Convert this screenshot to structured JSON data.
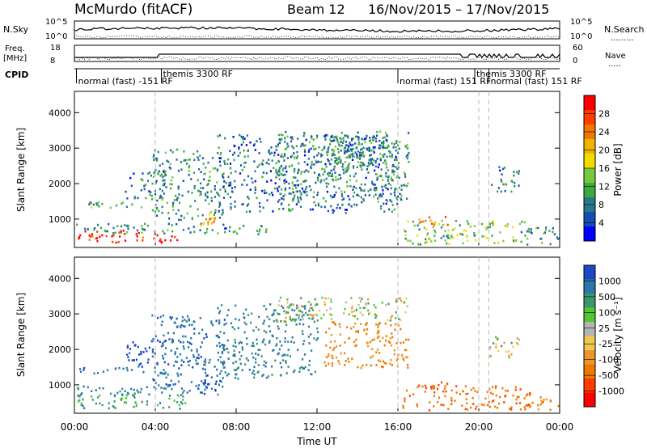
{
  "header": {
    "station": "McMurdo (fitACF)",
    "beam": "Beam 12",
    "dates": "16/Nov/2015 – 17/Nov/2015"
  },
  "panels": {
    "nsky": {
      "left_label": "N.Sky",
      "right_label": "N.Search",
      "right_dots": ".........",
      "ticks_left": [
        "10^5",
        "10^0"
      ],
      "ticks_right": [
        "10^5",
        "10^0"
      ]
    },
    "freq": {
      "left_label_1": "Freq.",
      "left_label_2": "[MHz]",
      "right_label": "Nave",
      "right_dots": ".....",
      "ticks_left": [
        "18",
        "8"
      ],
      "ticks_right": [
        "60",
        "0"
      ]
    },
    "cpid": {
      "label": "CPID"
    }
  },
  "cpid_labels": [
    {
      "text": "normal (fast) -151 RF",
      "time_h": 0.1,
      "row": 2
    },
    {
      "text": "themis 3300 RF",
      "time_h": 4.3,
      "row": 1
    },
    {
      "text": "normal (fast) 151 RF",
      "time_h": 16.0,
      "row": 2
    },
    {
      "text": "themis 3300 RF",
      "time_h": 19.8,
      "row": 1
    },
    {
      "text": "normal (fast) 151 RF",
      "time_h": 20.5,
      "row": 2
    }
  ],
  "colorbars": {
    "power": {
      "label": "Power [dB]",
      "ticks": [
        "28",
        "24",
        "20",
        "16",
        "12",
        "8",
        "4"
      ],
      "colors": [
        "#ff0000",
        "#ff3c00",
        "#f07800",
        "#f0b400",
        "#f0dc00",
        "#78c83c",
        "#3caa3c",
        "#28788c",
        "#1450b4",
        "#0000ff"
      ]
    },
    "velocity": {
      "label": "Velocity [m s⁻¹]",
      "ticks": [
        "1000",
        "500",
        "100",
        "25",
        "-25",
        "-100",
        "-500",
        "-1000"
      ],
      "colors": [
        "#1e46c8",
        "#2878aa",
        "#3c966e",
        "#50c832",
        "#b4b4b4",
        "#f0c850",
        "#f09628",
        "#f07800",
        "#ff3c00",
        "#ff0000"
      ]
    }
  },
  "chart_data": [
    {
      "type": "heatmap",
      "name": "Power",
      "ylabel": "Slant Range [km]",
      "xlabel": "Time UT",
      "x_ticks": [
        "00:00",
        "04:00",
        "08:00",
        "12:00",
        "16:00",
        "20:00",
        "00:00"
      ],
      "y_ticks": [
        "1000",
        "2000",
        "3000",
        "4000"
      ],
      "ylim": [
        200,
        4600
      ],
      "xlim_hours": [
        0,
        24
      ],
      "blobs": [
        {
          "t0": 0,
          "t1": 5.2,
          "r0": 360,
          "r1": 720,
          "v": 30
        },
        {
          "t0": 0,
          "t1": 7.5,
          "r0": 620,
          "r1": 900,
          "v": 10
        },
        {
          "t0": 0,
          "t1": 3.5,
          "r0": 1350,
          "r1": 1550,
          "v": 12
        },
        {
          "t0": 2.5,
          "t1": 4.5,
          "r0": 1600,
          "r1": 2400,
          "v": 8
        },
        {
          "t0": 3.8,
          "t1": 7.4,
          "r0": 1000,
          "r1": 3000,
          "v": 10
        },
        {
          "t0": 6.2,
          "t1": 7.0,
          "r0": 600,
          "r1": 1400,
          "v": 22
        },
        {
          "t0": 7.0,
          "t1": 9.5,
          "r0": 600,
          "r1": 900,
          "v": 9
        },
        {
          "t0": 7.0,
          "t1": 16.0,
          "r0": 1200,
          "r1": 3400,
          "v": 8
        },
        {
          "t0": 10.0,
          "t1": 16.5,
          "r0": 1500,
          "r1": 3500,
          "v": 11
        },
        {
          "t0": 12.3,
          "t1": 15.5,
          "r0": 2500,
          "r1": 3400,
          "v": 9
        },
        {
          "t0": 16.2,
          "t1": 22.5,
          "r0": 300,
          "r1": 1000,
          "v": 14
        },
        {
          "t0": 17.0,
          "t1": 18.5,
          "r0": 800,
          "r1": 1100,
          "v": 24
        },
        {
          "t0": 20.5,
          "t1": 22.0,
          "r0": 1800,
          "r1": 2500,
          "v": 9
        },
        {
          "t0": 22.0,
          "t1": 24.0,
          "r0": 300,
          "r1": 800,
          "v": 10
        }
      ]
    },
    {
      "type": "heatmap",
      "name": "Velocity",
      "ylabel": "Slant Range [km]",
      "xlabel": "Time UT",
      "x_ticks": [
        "00:00",
        "04:00",
        "08:00",
        "12:00",
        "16:00",
        "20:00",
        "00:00"
      ],
      "y_ticks": [
        "1000",
        "2000",
        "3000",
        "4000"
      ],
      "ylim": [
        200,
        4600
      ],
      "xlim_hours": [
        0,
        24
      ],
      "blobs": [
        {
          "t0": 0,
          "t1": 5.5,
          "r0": 350,
          "r1": 750,
          "v": 150
        },
        {
          "t0": 0,
          "t1": 7.5,
          "r0": 700,
          "r1": 1000,
          "v": 300
        },
        {
          "t0": 0,
          "t1": 3.5,
          "r0": 1350,
          "r1": 1550,
          "v": 400
        },
        {
          "t0": 2.5,
          "t1": 4.5,
          "r0": 1600,
          "r1": 2300,
          "v": 600
        },
        {
          "t0": 3.8,
          "t1": 7.4,
          "r0": 1000,
          "r1": 3000,
          "v": 400
        },
        {
          "t0": 6.2,
          "t1": 7.0,
          "r0": 700,
          "r1": 1300,
          "v": 900
        },
        {
          "t0": 7.0,
          "t1": 12.0,
          "r0": 1200,
          "r1": 3300,
          "v": 300
        },
        {
          "t0": 10.0,
          "t1": 16.5,
          "r0": 2800,
          "r1": 3500,
          "v": 0
        },
        {
          "t0": 12.3,
          "t1": 16.5,
          "r0": 1500,
          "r1": 2800,
          "v": -300
        },
        {
          "t0": 16.2,
          "t1": 22.5,
          "r0": 300,
          "r1": 1000,
          "v": -400
        },
        {
          "t0": 17.0,
          "t1": 18.5,
          "r0": 800,
          "r1": 1100,
          "v": -600
        },
        {
          "t0": 20.5,
          "t1": 22.0,
          "r0": 1800,
          "r1": 2400,
          "v": 0
        },
        {
          "t0": 22.0,
          "t1": 24.0,
          "r0": 300,
          "r1": 700,
          "v": -300
        }
      ]
    }
  ]
}
